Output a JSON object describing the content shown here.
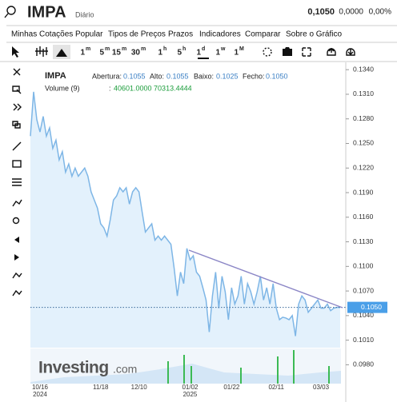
{
  "header": {
    "symbol": "IMPA",
    "period": "Diário",
    "price": "0,1050",
    "change": "0,0000",
    "change_pct": "0,00%"
  },
  "menu": [
    "Minhas Cotações",
    "Popular",
    "Tipos de Preços",
    "Prazos",
    "Indicadores",
    "Comparar",
    "Sobre o Gráfico"
  ],
  "timeframes": [
    {
      "num": "1",
      "unit": "m"
    },
    {
      "num": "5",
      "unit": "m"
    },
    {
      "num": "15",
      "unit": "m"
    },
    {
      "num": "30",
      "unit": "m"
    },
    {
      "num": "1",
      "unit": "h"
    },
    {
      "num": "5",
      "unit": "h"
    },
    {
      "num": "1",
      "unit": "d"
    },
    {
      "num": "1",
      "unit": "w"
    },
    {
      "num": "1",
      "unit": "M"
    }
  ],
  "legend": {
    "symbol": "IMPA",
    "open_label": "Abertura:",
    "open": "0.1055",
    "high_label": "Alto:",
    "high": "0.1055",
    "low_label": "Baixo:",
    "low": "0.1025",
    "close_label": "Fecho:",
    "close": "0.1050",
    "volume_label": "Volume (9)",
    "volume_sep": ":",
    "volume_values": "40601.0000 70313.4444"
  },
  "watermark": {
    "brand": "Investing",
    "suffix": ".com"
  },
  "chart_data": {
    "type": "line",
    "color": "#7eb6e6",
    "fill_color": "#e3f1fc",
    "categories": [
      null,
      null,
      null,
      "10/16",
      null,
      null,
      null,
      null,
      null,
      null,
      null,
      null,
      null,
      null,
      null,
      null,
      null,
      null,
      null,
      null,
      null,
      null,
      "11/18",
      null,
      null,
      null,
      null,
      null,
      null,
      null,
      null,
      null,
      null,
      null,
      "12/10",
      null,
      null,
      null,
      null,
      null,
      null,
      null,
      null,
      null,
      null,
      null,
      null,
      null,
      null,
      null,
      "01/02",
      null,
      null,
      null,
      null,
      null,
      null,
      null,
      null,
      null,
      null,
      null,
      null,
      "01/22",
      null,
      null,
      null,
      null,
      null,
      null,
      null,
      null,
      null,
      null,
      null,
      null,
      null,
      "02/11",
      null,
      null,
      null,
      null,
      null,
      null,
      null,
      null,
      null,
      null,
      null,
      null,
      null,
      "03/03",
      null,
      null,
      null,
      null,
      null,
      null
    ],
    "category_sublabels": [
      null,
      null,
      null,
      "2024",
      null,
      null,
      null,
      null,
      null,
      null,
      null,
      null,
      null,
      null,
      null,
      null,
      null,
      null,
      null,
      null,
      null,
      null,
      null,
      null,
      null,
      null,
      null,
      null,
      null,
      null,
      null,
      null,
      null,
      null,
      null,
      null,
      null,
      null,
      null,
      null,
      null,
      null,
      null,
      null,
      null,
      null,
      null,
      null,
      null,
      null,
      "2025",
      null,
      null,
      null,
      null,
      null,
      null,
      null,
      null,
      null,
      null,
      null,
      null,
      null,
      null,
      null,
      null,
      null,
      null,
      null,
      null,
      null,
      null,
      null,
      null,
      null,
      null,
      null,
      null,
      null,
      null,
      null,
      null,
      null,
      null,
      null,
      null,
      null,
      null,
      null,
      null,
      null,
      null,
      null,
      null,
      null,
      null,
      null
    ],
    "values": [
      0.1259,
      0.1313,
      0.1279,
      0.1264,
      0.1283,
      0.1259,
      0.1269,
      0.1244,
      0.1254,
      0.123,
      0.124,
      0.1215,
      0.1225,
      0.121,
      0.122,
      0.121,
      0.1215,
      0.122,
      0.121,
      0.1191,
      0.1181,
      0.1171,
      0.1152,
      0.1147,
      0.1137,
      0.1157,
      0.1181,
      0.1186,
      0.1196,
      0.1191,
      0.1196,
      0.1176,
      0.1191,
      0.1196,
      0.1191,
      0.1166,
      0.1142,
      0.1147,
      0.1152,
      0.1132,
      0.1137,
      0.1132,
      0.1137,
      0.1132,
      0.1127,
      0.1098,
      0.1064,
      0.1093,
      0.1079,
      0.1122,
      0.1108,
      0.1113,
      0.1093,
      0.1088,
      0.1074,
      0.1059,
      0.102,
      0.1064,
      0.1093,
      0.1049,
      0.1088,
      0.1069,
      0.1035,
      0.1074,
      0.1054,
      0.1064,
      0.1088,
      0.1054,
      0.1079,
      0.1069,
      0.1054,
      0.1069,
      0.1088,
      0.1059,
      0.1074,
      0.1054,
      0.1079,
      0.1049,
      0.1035,
      0.1038,
      0.1037,
      0.1035,
      0.104,
      0.1015,
      0.1054,
      0.1064,
      0.1059,
      0.1044,
      0.1049,
      0.1054,
      0.1059,
      0.1049,
      0.1049,
      0.1054,
      0.1046,
      0.1049,
      0.105,
      0.105
    ],
    "ylim": [
      0.0957,
      0.1347
    ],
    "yticks": [
      {
        "value": 0.134,
        "label": "0.1340"
      },
      {
        "value": 0.131,
        "label": "0.1310"
      },
      {
        "value": 0.128,
        "label": "0.1280"
      },
      {
        "value": 0.125,
        "label": "0.1250"
      },
      {
        "value": 0.122,
        "label": "0.1220"
      },
      {
        "value": 0.119,
        "label": "0.1190"
      },
      {
        "value": 0.116,
        "label": "0.1160"
      },
      {
        "value": 0.113,
        "label": "0.1130"
      },
      {
        "value": 0.11,
        "label": "0.1100"
      },
      {
        "value": 0.107,
        "label": "0.1070"
      },
      {
        "value": 0.104,
        "label": "0.1040"
      },
      {
        "value": 0.101,
        "label": "0.1010"
      },
      {
        "value": 0.098,
        "label": "0.0980"
      }
    ],
    "last_price": {
      "value": 0.105,
      "label": "0.1050"
    },
    "grid": false
  }
}
